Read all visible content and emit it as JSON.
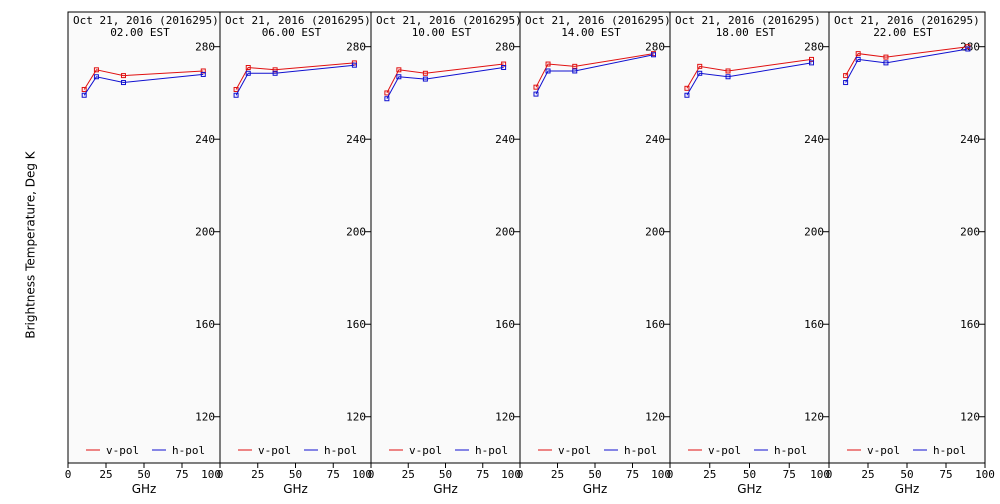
{
  "colors": {
    "v_pol": "#e01010",
    "h_pol": "#1010d0",
    "panel_bg": "#fafafa",
    "axis": "#000000"
  },
  "figure": {
    "ylabel": "Brightness Temperature, Deg K"
  },
  "chart_data": [
    {
      "type": "line",
      "title": "Oct 21, 2016 (2016295)",
      "subtitle": "02.00 EST",
      "xlabel": "GHz",
      "ylabel": "Brightness Temperature, Deg K",
      "xlim": [
        0,
        100
      ],
      "ylim": [
        100,
        295
      ],
      "xticks": [
        "0",
        "25",
        "50",
        "75",
        "100"
      ],
      "yticks": [
        "120",
        "160",
        "200",
        "240",
        "280"
      ],
      "x": [
        10.65,
        18.7,
        36.5,
        89
      ],
      "series": [
        {
          "name": "v-pol",
          "values": [
            261.5,
            270,
            267.5,
            269.5
          ]
        },
        {
          "name": "h-pol",
          "values": [
            259,
            267,
            264.5,
            268
          ]
        }
      ],
      "legend": "bottom"
    },
    {
      "type": "line",
      "title": "Oct 21, 2016 (2016295)",
      "subtitle": "06.00 EST",
      "xlabel": "GHz",
      "ylabel": "",
      "xlim": [
        0,
        100
      ],
      "ylim": [
        100,
        295
      ],
      "xticks": [
        "0",
        "25",
        "50",
        "75",
        "100"
      ],
      "yticks": [
        "120",
        "160",
        "200",
        "240",
        "280"
      ],
      "x": [
        10.65,
        18.7,
        36.5,
        89
      ],
      "series": [
        {
          "name": "v-pol",
          "values": [
            261.5,
            271,
            270,
            273
          ]
        },
        {
          "name": "h-pol",
          "values": [
            259,
            268.5,
            268.5,
            272
          ]
        }
      ],
      "legend": "bottom"
    },
    {
      "type": "line",
      "title": "Oct 21, 2016 (2016295)",
      "subtitle": "10.00 EST",
      "xlabel": "GHz",
      "ylabel": "",
      "xlim": [
        0,
        100
      ],
      "ylim": [
        100,
        295
      ],
      "xticks": [
        "0",
        "25",
        "50",
        "75",
        "100"
      ],
      "yticks": [
        "120",
        "160",
        "200",
        "240",
        "280"
      ],
      "x": [
        10.65,
        18.7,
        36.5,
        89
      ],
      "series": [
        {
          "name": "v-pol",
          "values": [
            260,
            270,
            268.5,
            272.5
          ]
        },
        {
          "name": "h-pol",
          "values": [
            257.5,
            267,
            266,
            271
          ]
        }
      ],
      "legend": "bottom"
    },
    {
      "type": "line",
      "title": "Oct 21, 2016 (2016295)",
      "subtitle": "14.00 EST",
      "xlabel": "GHz",
      "ylabel": "",
      "xlim": [
        0,
        100
      ],
      "ylim": [
        100,
        295
      ],
      "xticks": [
        "0",
        "25",
        "50",
        "75",
        "100"
      ],
      "yticks": [
        "120",
        "160",
        "200",
        "240",
        "280"
      ],
      "x": [
        10.65,
        18.7,
        36.5,
        89
      ],
      "series": [
        {
          "name": "v-pol",
          "values": [
            262.5,
            272.5,
            271.5,
            277
          ]
        },
        {
          "name": "h-pol",
          "values": [
            259.5,
            269.5,
            269.5,
            276.5
          ]
        }
      ],
      "legend": "bottom"
    },
    {
      "type": "line",
      "title": "Oct 21, 2016 (2016295)",
      "subtitle": "18.00 EST",
      "xlabel": "GHz",
      "ylabel": "",
      "xlim": [
        0,
        100
      ],
      "ylim": [
        100,
        295
      ],
      "xticks": [
        "0",
        "25",
        "50",
        "75",
        "100"
      ],
      "yticks": [
        "120",
        "160",
        "200",
        "240",
        "280"
      ],
      "x": [
        10.65,
        18.7,
        36.5,
        89
      ],
      "series": [
        {
          "name": "v-pol",
          "values": [
            262,
            271.5,
            269.5,
            274.5
          ]
        },
        {
          "name": "h-pol",
          "values": [
            259,
            268.5,
            267,
            273
          ]
        }
      ],
      "legend": "bottom"
    },
    {
      "type": "line",
      "title": "Oct 21, 2016 (2016295)",
      "subtitle": "22.00 EST",
      "xlabel": "GHz",
      "ylabel": "",
      "xlim": [
        0,
        100
      ],
      "ylim": [
        100,
        295
      ],
      "xticks": [
        "0",
        "25",
        "50",
        "75",
        "100"
      ],
      "yticks": [
        "120",
        "160",
        "200",
        "240",
        "280"
      ],
      "x": [
        10.65,
        18.7,
        36.5,
        89
      ],
      "series": [
        {
          "name": "v-pol",
          "values": [
            267.5,
            277,
            275.5,
            280
          ]
        },
        {
          "name": "h-pol",
          "values": [
            264.5,
            274.5,
            273,
            279
          ]
        }
      ],
      "legend": "bottom"
    }
  ]
}
